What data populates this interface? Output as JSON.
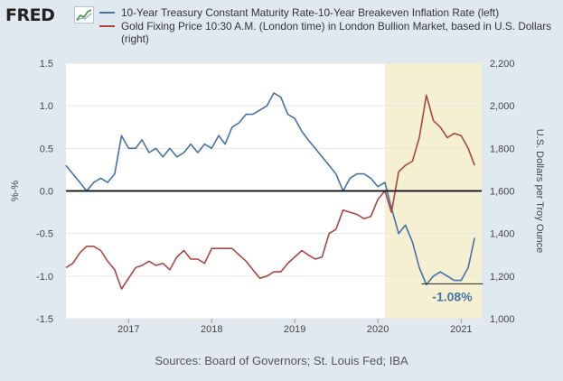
{
  "header": {
    "logo_text": "FRED",
    "logo_icon": "fred-chart-logo-icon"
  },
  "colors": {
    "series_blue": "#4572a7",
    "series_red": "#aa4643",
    "recession_shade": "#f5f0d2",
    "page_background": "#e1e9f0",
    "plot_background": "#ffffff"
  },
  "source_text": "Sources: Board of Governors; St. Louis Fed; IBA",
  "chart_data": {
    "type": "line",
    "title": "",
    "x_ticks": [
      "2017",
      "2018",
      "2019",
      "2020",
      "2021"
    ],
    "xlim": [
      "2016-04-01",
      "2021-04-01"
    ],
    "y_left": {
      "label": "%-%",
      "ticks": [
        "1.5",
        "1.0",
        "0.5",
        "0.0",
        "-0.5",
        "-1.0",
        "-1.5"
      ],
      "range": [
        -1.5,
        1.5
      ]
    },
    "y_right": {
      "label": "U.S. Dollars per Troy Ounce",
      "ticks": [
        "2,200",
        "2,000",
        "1,800",
        "1,600",
        "1,400",
        "1,200",
        "1,000"
      ],
      "range": [
        1000,
        2200
      ]
    },
    "shaded_region": {
      "start": "2020-02-01",
      "end": "2021-04-01"
    },
    "zero_line": 0,
    "annotation": {
      "text": "-1.08%",
      "x": "2020-11-15",
      "y": -1.08
    },
    "legend_position": "top",
    "series": [
      {
        "name": "10-Year Treasury Constant Maturity Rate-10-Year Breakeven Inflation Rate (left)",
        "axis": "left",
        "color": "#4572a7",
        "points": [
          [
            "2016-04-01",
            0.3
          ],
          [
            "2016-05-01",
            0.2
          ],
          [
            "2016-06-01",
            0.1
          ],
          [
            "2016-07-01",
            0.0
          ],
          [
            "2016-08-01",
            0.1
          ],
          [
            "2016-09-01",
            0.15
          ],
          [
            "2016-10-01",
            0.1
          ],
          [
            "2016-11-01",
            0.2
          ],
          [
            "2016-12-01",
            0.65
          ],
          [
            "2017-01-01",
            0.5
          ],
          [
            "2017-02-01",
            0.5
          ],
          [
            "2017-03-01",
            0.6
          ],
          [
            "2017-04-01",
            0.45
          ],
          [
            "2017-05-01",
            0.5
          ],
          [
            "2017-06-01",
            0.4
          ],
          [
            "2017-07-01",
            0.5
          ],
          [
            "2017-08-01",
            0.4
          ],
          [
            "2017-09-01",
            0.45
          ],
          [
            "2017-10-01",
            0.55
          ],
          [
            "2017-11-01",
            0.45
          ],
          [
            "2017-12-01",
            0.55
          ],
          [
            "2018-01-01",
            0.5
          ],
          [
            "2018-02-01",
            0.65
          ],
          [
            "2018-03-01",
            0.55
          ],
          [
            "2018-04-01",
            0.75
          ],
          [
            "2018-05-01",
            0.8
          ],
          [
            "2018-06-01",
            0.9
          ],
          [
            "2018-07-01",
            0.9
          ],
          [
            "2018-08-01",
            0.95
          ],
          [
            "2018-09-01",
            1.0
          ],
          [
            "2018-10-01",
            1.15
          ],
          [
            "2018-11-01",
            1.1
          ],
          [
            "2018-12-01",
            0.9
          ],
          [
            "2019-01-01",
            0.85
          ],
          [
            "2019-02-01",
            0.7
          ],
          [
            "2019-03-01",
            0.6
          ],
          [
            "2019-04-01",
            0.5
          ],
          [
            "2019-05-01",
            0.4
          ],
          [
            "2019-06-01",
            0.3
          ],
          [
            "2019-07-01",
            0.2
          ],
          [
            "2019-08-01",
            0.0
          ],
          [
            "2019-09-01",
            0.15
          ],
          [
            "2019-10-01",
            0.2
          ],
          [
            "2019-11-01",
            0.2
          ],
          [
            "2019-12-01",
            0.15
          ],
          [
            "2020-01-01",
            0.05
          ],
          [
            "2020-02-01",
            0.1
          ],
          [
            "2020-03-01",
            -0.2
          ],
          [
            "2020-04-01",
            -0.5
          ],
          [
            "2020-05-01",
            -0.4
          ],
          [
            "2020-06-01",
            -0.6
          ],
          [
            "2020-07-01",
            -0.9
          ],
          [
            "2020-08-01",
            -1.1
          ],
          [
            "2020-09-01",
            -1.0
          ],
          [
            "2020-10-01",
            -0.95
          ],
          [
            "2020-11-01",
            -1.0
          ],
          [
            "2020-12-01",
            -1.05
          ],
          [
            "2021-01-01",
            -1.05
          ],
          [
            "2021-02-01",
            -0.9
          ],
          [
            "2021-03-01",
            -0.55
          ]
        ]
      },
      {
        "name": "Gold Fixing Price 10:30 A.M. (London time) in London Bullion Market, based in U.S. Dollars (right)",
        "axis": "right",
        "color": "#aa4643",
        "points": [
          [
            "2016-04-01",
            1240
          ],
          [
            "2016-05-01",
            1260
          ],
          [
            "2016-06-01",
            1310
          ],
          [
            "2016-07-01",
            1340
          ],
          [
            "2016-08-01",
            1340
          ],
          [
            "2016-09-01",
            1320
          ],
          [
            "2016-10-01",
            1270
          ],
          [
            "2016-11-01",
            1230
          ],
          [
            "2016-12-01",
            1140
          ],
          [
            "2017-01-01",
            1190
          ],
          [
            "2017-02-01",
            1240
          ],
          [
            "2017-03-01",
            1250
          ],
          [
            "2017-04-01",
            1270
          ],
          [
            "2017-05-01",
            1250
          ],
          [
            "2017-06-01",
            1260
          ],
          [
            "2017-07-01",
            1230
          ],
          [
            "2017-08-01",
            1290
          ],
          [
            "2017-09-01",
            1320
          ],
          [
            "2017-10-01",
            1280
          ],
          [
            "2017-11-01",
            1280
          ],
          [
            "2017-12-01",
            1260
          ],
          [
            "2018-01-01",
            1330
          ],
          [
            "2018-02-01",
            1330
          ],
          [
            "2018-03-01",
            1330
          ],
          [
            "2018-04-01",
            1330
          ],
          [
            "2018-05-01",
            1300
          ],
          [
            "2018-06-01",
            1270
          ],
          [
            "2018-07-01",
            1230
          ],
          [
            "2018-08-01",
            1190
          ],
          [
            "2018-09-01",
            1200
          ],
          [
            "2018-10-01",
            1220
          ],
          [
            "2018-11-01",
            1220
          ],
          [
            "2018-12-01",
            1260
          ],
          [
            "2019-01-01",
            1290
          ],
          [
            "2019-02-01",
            1320
          ],
          [
            "2019-03-01",
            1300
          ],
          [
            "2019-04-01",
            1280
          ],
          [
            "2019-05-01",
            1290
          ],
          [
            "2019-06-01",
            1400
          ],
          [
            "2019-07-01",
            1420
          ],
          [
            "2019-08-01",
            1510
          ],
          [
            "2019-09-01",
            1500
          ],
          [
            "2019-10-01",
            1490
          ],
          [
            "2019-11-01",
            1470
          ],
          [
            "2019-12-01",
            1480
          ],
          [
            "2020-01-01",
            1560
          ],
          [
            "2020-02-01",
            1600
          ],
          [
            "2020-03-01",
            1500
          ],
          [
            "2020-04-01",
            1690
          ],
          [
            "2020-05-01",
            1720
          ],
          [
            "2020-06-01",
            1740
          ],
          [
            "2020-07-01",
            1850
          ],
          [
            "2020-08-01",
            2050
          ],
          [
            "2020-09-01",
            1930
          ],
          [
            "2020-10-01",
            1900
          ],
          [
            "2020-11-01",
            1850
          ],
          [
            "2020-12-01",
            1870
          ],
          [
            "2021-01-01",
            1860
          ],
          [
            "2021-02-01",
            1800
          ],
          [
            "2021-03-01",
            1720
          ]
        ]
      }
    ]
  }
}
